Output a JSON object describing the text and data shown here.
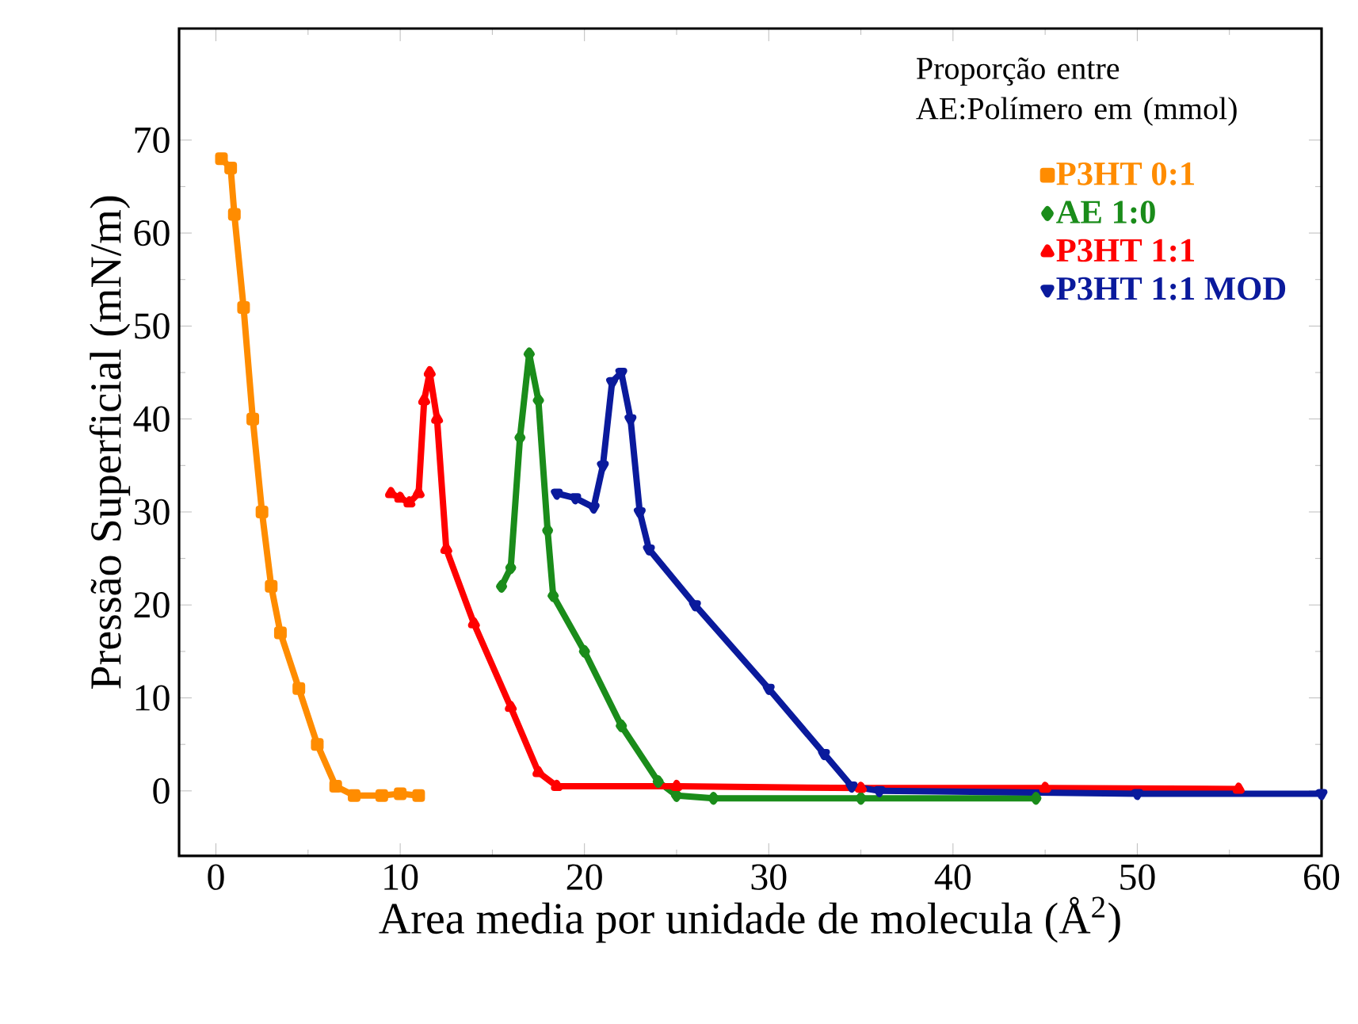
{
  "chart_data": {
    "type": "line",
    "xlabel": "Area media por unidade de molecula (Å$^{2}$)",
    "ylabel": "Pressão Superficial (mN/m)",
    "legend_title": "Proporção entre\nAE:Polímero em (mmol)",
    "xlim": [
      -2,
      60
    ],
    "ylim": [
      -7,
      82
    ],
    "xticks": [
      0,
      10,
      20,
      30,
      40,
      50,
      60
    ],
    "yticks": [
      0,
      10,
      20,
      30,
      40,
      50,
      60,
      70
    ],
    "legend": "top right",
    "line_style": "solid",
    "series": [
      {
        "name": "P3HT 0:1",
        "color": "#ff8c00",
        "marker": "square",
        "x": [
          0.3,
          0.8,
          1,
          1.5,
          2,
          2.5,
          3,
          3.5,
          4.5,
          5.5,
          6.5,
          7.5,
          9,
          10,
          11
        ],
        "values": [
          68,
          67,
          62,
          52,
          40,
          30,
          22,
          17,
          11,
          5,
          0.5,
          -0.5,
          -0.5,
          -0.3,
          -0.5
        ]
      },
      {
        "name": "AE     1:0",
        "color": "#1a8c1a",
        "marker": "diamond",
        "x": [
          15.5,
          16,
          16.5,
          17,
          17.5,
          18,
          18.3,
          20,
          22,
          24,
          25,
          27,
          35,
          44.5
        ],
        "values": [
          22,
          24,
          38,
          47,
          42,
          28,
          21,
          15,
          7,
          1,
          -0.5,
          -0.8,
          -0.8,
          -0.8
        ]
      },
      {
        "name": "P3HT 1:1",
        "color": "#ff0000",
        "marker": "triangle",
        "x": [
          9.5,
          10,
          10.5,
          11,
          11.3,
          11.6,
          12,
          12.5,
          14,
          16,
          17.5,
          18.5,
          25,
          35,
          45,
          55.5
        ],
        "values": [
          32,
          31.5,
          31,
          32,
          42,
          45,
          40,
          26,
          18,
          9,
          2,
          0.5,
          0.5,
          0.3,
          0.3,
          0.2
        ]
      },
      {
        "name": "P3HT 1:1 MOD",
        "color": "#0a1a9c",
        "marker": "triangle down",
        "x": [
          18.5,
          19.5,
          20.5,
          21,
          21.5,
          22,
          22.5,
          23,
          23.5,
          26,
          30,
          33,
          34.5,
          36,
          50,
          60
        ],
        "values": [
          32,
          31.5,
          30.5,
          35,
          44,
          45,
          40,
          30,
          26,
          20,
          11,
          4,
          0.5,
          0,
          -0.3,
          -0.3
        ]
      }
    ]
  }
}
